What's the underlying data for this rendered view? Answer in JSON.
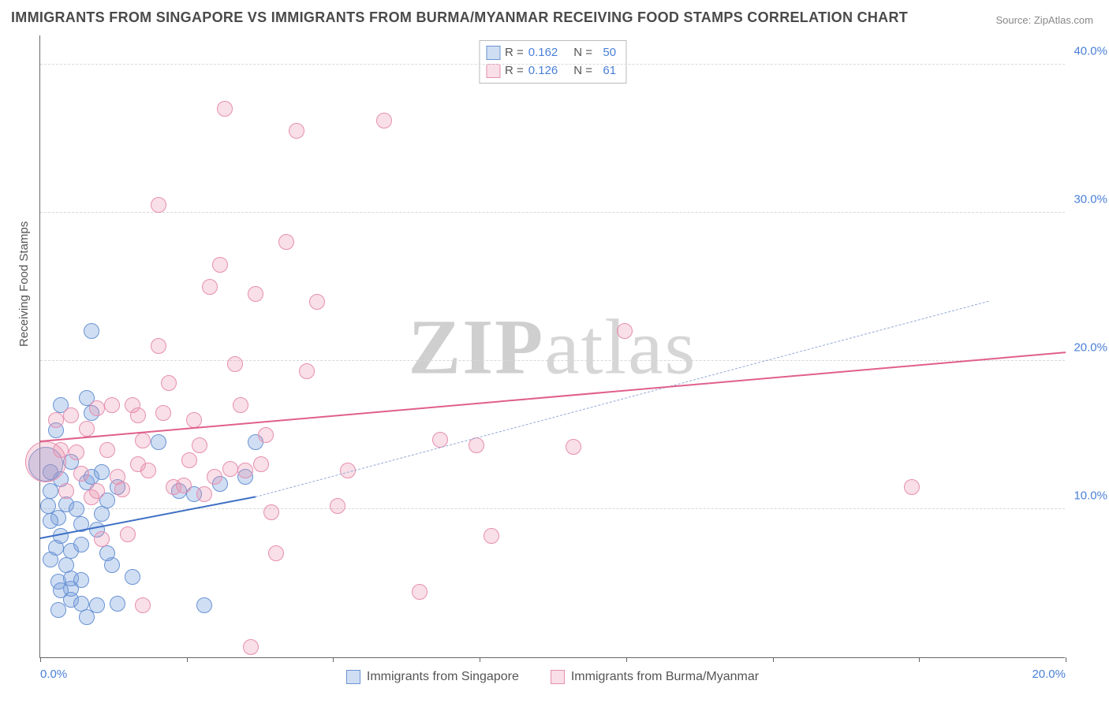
{
  "title": "IMMIGRANTS FROM SINGAPORE VS IMMIGRANTS FROM BURMA/MYANMAR RECEIVING FOOD STAMPS CORRELATION CHART",
  "source_label": "Source: ",
  "source_site": "ZipAtlas.com",
  "ylabel": "Receiving Food Stamps",
  "watermark_bold": "ZIP",
  "watermark_light": "atlas",
  "chart": {
    "type": "scatter-correlation",
    "xlim": [
      0,
      20
    ],
    "ylim": [
      0,
      42
    ],
    "xtick_positions": [
      0,
      2.86,
      5.71,
      8.57,
      11.43,
      14.29,
      17.14,
      20
    ],
    "xtick_labels": {
      "0": "0.0%",
      "20": "20.0%"
    },
    "ytick_positions": [
      10,
      20,
      30,
      40
    ],
    "ytick_labels": [
      "10.0%",
      "20.0%",
      "30.0%",
      "40.0%"
    ],
    "grid_color": "#d8d8d8",
    "axis_color": "#666666",
    "background_color": "#ffffff",
    "label_color": "#4a7fd8",
    "point_radius": 10,
    "series": [
      {
        "name": "Immigrants from Singapore",
        "color_fill": "rgba(120,160,220,0.35)",
        "color_stroke": "#6a93d4",
        "trend_solid_color": "#3e6fc5",
        "trend_dashed_color": "#93abd6",
        "R": "0.162",
        "N": "50",
        "trend": {
          "x1": 0,
          "y1": 8.0,
          "x2_solid": 4.2,
          "y2_solid": 10.8,
          "x2": 18.5,
          "y2": 24.0
        },
        "points": [
          [
            0.1,
            13.0,
            22
          ],
          [
            0.3,
            7.4
          ],
          [
            0.35,
            9.4
          ],
          [
            0.2,
            11.2
          ],
          [
            0.4,
            8.2
          ],
          [
            0.5,
            6.2
          ],
          [
            0.35,
            5.1
          ],
          [
            0.6,
            5.3
          ],
          [
            0.8,
            5.2
          ],
          [
            0.6,
            7.2
          ],
          [
            0.8,
            7.6
          ],
          [
            0.5,
            10.3
          ],
          [
            0.9,
            11.8
          ],
          [
            1.0,
            12.2
          ],
          [
            0.7,
            10.0
          ],
          [
            1.2,
            9.7
          ],
          [
            1.1,
            8.6
          ],
          [
            1.3,
            10.6
          ],
          [
            1.5,
            11.5
          ],
          [
            1.2,
            12.5
          ],
          [
            1.0,
            16.5
          ],
          [
            0.9,
            17.5
          ],
          [
            0.4,
            17.0
          ],
          [
            0.3,
            15.3
          ],
          [
            0.6,
            13.2
          ],
          [
            0.2,
            9.2
          ],
          [
            0.2,
            6.6
          ],
          [
            0.6,
            3.9
          ],
          [
            0.8,
            3.6
          ],
          [
            1.1,
            3.5
          ],
          [
            1.5,
            3.6
          ],
          [
            1.8,
            5.4
          ],
          [
            1.4,
            6.2
          ],
          [
            2.3,
            14.5
          ],
          [
            2.7,
            11.2
          ],
          [
            3.0,
            11.0
          ],
          [
            3.2,
            3.5
          ],
          [
            3.5,
            11.7
          ],
          [
            4.0,
            12.2
          ],
          [
            4.2,
            14.5
          ],
          [
            1.0,
            22.0
          ],
          [
            0.6,
            4.6
          ],
          [
            0.4,
            4.5
          ],
          [
            0.35,
            3.2
          ],
          [
            0.9,
            2.7
          ],
          [
            1.3,
            7.0
          ],
          [
            0.2,
            12.5
          ],
          [
            0.4,
            12.0
          ],
          [
            0.15,
            10.2
          ],
          [
            0.8,
            9.0
          ]
        ]
      },
      {
        "name": "Immigrants from Burma/Myanmar",
        "color_fill": "rgba(235,140,170,0.28)",
        "color_stroke": "#e68fb0",
        "trend_solid_color": "#e05f8c",
        "R": "0.126",
        "N": "61",
        "trend": {
          "x1": 0,
          "y1": 14.5,
          "x2": 20,
          "y2": 20.5
        },
        "points": [
          [
            0.1,
            13.2,
            26
          ],
          [
            0.5,
            11.2
          ],
          [
            0.9,
            15.4
          ],
          [
            1.1,
            16.8
          ],
          [
            1.3,
            14.0
          ],
          [
            1.4,
            17.0
          ],
          [
            1.6,
            11.3
          ],
          [
            1.8,
            17.0
          ],
          [
            1.9,
            16.3
          ],
          [
            2.0,
            14.6
          ],
          [
            2.1,
            12.6
          ],
          [
            2.3,
            30.5
          ],
          [
            2.3,
            21.0
          ],
          [
            2.5,
            18.5
          ],
          [
            2.8,
            11.6
          ],
          [
            3.0,
            16.0
          ],
          [
            3.1,
            14.3
          ],
          [
            3.3,
            25.0
          ],
          [
            3.5,
            26.5
          ],
          [
            3.6,
            37.0
          ],
          [
            3.7,
            12.7
          ],
          [
            3.8,
            19.8
          ],
          [
            3.9,
            17.0
          ],
          [
            4.0,
            12.6
          ],
          [
            4.1,
            0.7
          ],
          [
            4.2,
            24.5
          ],
          [
            4.3,
            13.0
          ],
          [
            4.5,
            9.8
          ],
          [
            4.6,
            7.0
          ],
          [
            4.8,
            28.0
          ],
          [
            5.0,
            35.5
          ],
          [
            5.2,
            19.3
          ],
          [
            5.4,
            24.0
          ],
          [
            6.0,
            12.6
          ],
          [
            6.7,
            36.2
          ],
          [
            7.4,
            4.4
          ],
          [
            7.8,
            14.7
          ],
          [
            8.5,
            14.3
          ],
          [
            8.8,
            8.2
          ],
          [
            10.4,
            14.2
          ],
          [
            11.4,
            22.0
          ],
          [
            1.0,
            10.8
          ],
          [
            1.2,
            8.0
          ],
          [
            1.7,
            8.3
          ],
          [
            2.0,
            3.5
          ],
          [
            0.6,
            16.3
          ],
          [
            0.8,
            12.4
          ],
          [
            0.4,
            14.0
          ],
          [
            17.0,
            11.5
          ],
          [
            3.2,
            11.0
          ],
          [
            2.6,
            11.5
          ],
          [
            2.4,
            16.5
          ],
          [
            1.9,
            13.0
          ],
          [
            1.5,
            12.2
          ],
          [
            1.1,
            11.2
          ],
          [
            0.7,
            13.8
          ],
          [
            0.3,
            16.0
          ],
          [
            2.9,
            13.3
          ],
          [
            3.4,
            12.2
          ],
          [
            4.4,
            15.0
          ],
          [
            5.8,
            10.2
          ]
        ]
      }
    ]
  },
  "top_legend": {
    "rows": [
      {
        "swatch": "blue",
        "r_label": "R =",
        "r_val": "0.162",
        "n_label": "N =",
        "n_val": "50"
      },
      {
        "swatch": "pink",
        "r_label": "R =",
        "r_val": "0.126",
        "n_label": "N =",
        "n_val": "61"
      }
    ]
  },
  "bottom_legend": {
    "items": [
      {
        "swatch": "blue",
        "label": "Immigrants from Singapore"
      },
      {
        "swatch": "pink",
        "label": "Immigrants from Burma/Myanmar"
      }
    ]
  }
}
